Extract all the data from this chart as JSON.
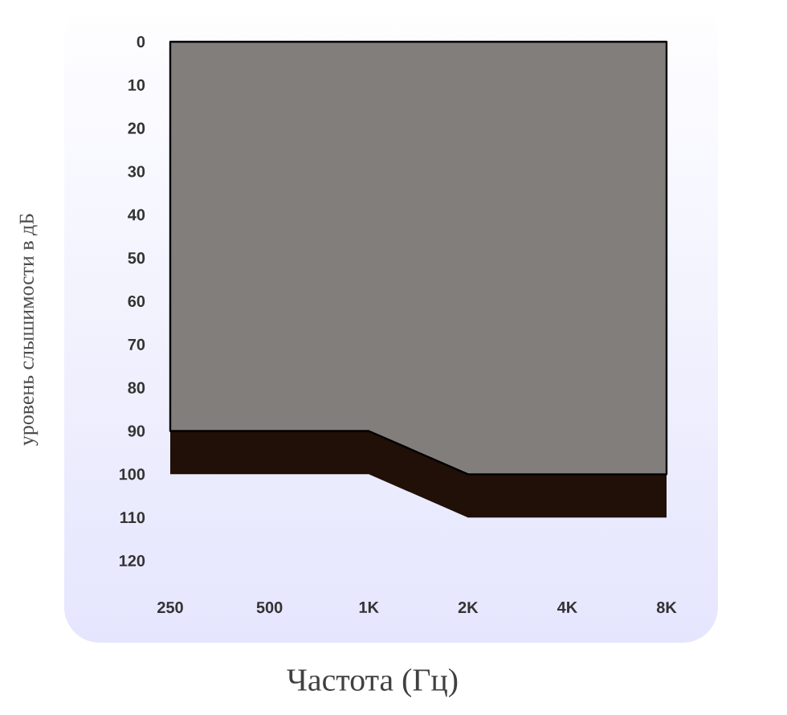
{
  "chart_data": {
    "type": "area",
    "xlabel": "Частота (Гц)",
    "ylabel": "уровень слышимости в дБ",
    "categories": [
      "250",
      "500",
      "1K",
      "2K",
      "4K",
      "8K"
    ],
    "stacked": true,
    "series": [
      {
        "color": "#827e7c",
        "values": [
          90,
          90,
          90,
          100,
          100,
          100
        ]
      },
      {
        "color": "#201008",
        "values": [
          10,
          10,
          10,
          10,
          10,
          10
        ]
      }
    ],
    "ylim": [
      120,
      0
    ],
    "yticks": [
      0,
      10,
      20,
      30,
      40,
      50,
      60,
      70,
      80,
      90,
      100,
      110,
      120
    ]
  }
}
